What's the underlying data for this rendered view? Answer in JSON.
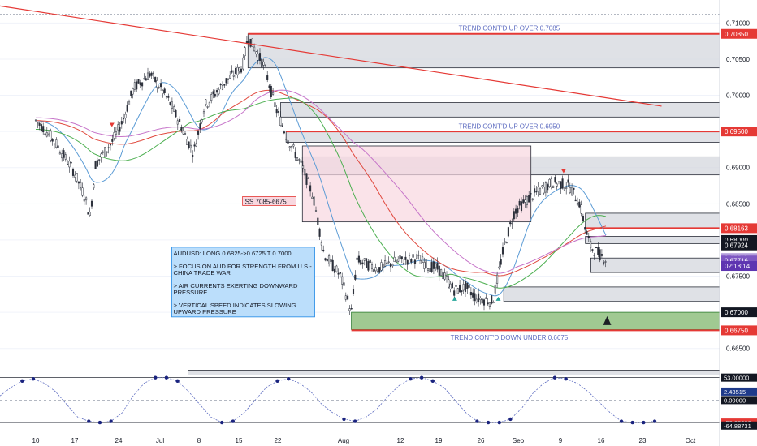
{
  "chart_data": [
    {
      "type": "line",
      "symbol": "AUDUSD",
      "x_dates": [
        "2019-06-10",
        "2019-07-22",
        "2019-08-01",
        "2019-09-01",
        "2019-09-23"
      ],
      "x_tick_labels": [
        "10",
        "17",
        "24",
        "Jul",
        "8",
        "15",
        "22",
        "Aug",
        "12",
        "19",
        "26",
        "Sep",
        "9",
        "16",
        "23",
        "Oct"
      ],
      "price_axis_labels": [
        "0.71000",
        "0.70500",
        "0.70000",
        "0.69500",
        "0.69000",
        "0.68500",
        "0.68000",
        "0.67500",
        "0.67000",
        "0.66500"
      ],
      "ylim": [
        0.6625,
        0.7115
      ],
      "price_path": [
        {
          "d": "2019-06-10",
          "p": 0.6965
        },
        {
          "d": "2019-06-12",
          "p": 0.695
        },
        {
          "d": "2019-06-14",
          "p": 0.693
        },
        {
          "d": "2019-06-17",
          "p": 0.6895
        },
        {
          "d": "2019-06-19",
          "p": 0.686
        },
        {
          "d": "2019-06-20",
          "p": 0.6832
        },
        {
          "d": "2019-06-21",
          "p": 0.6905
        },
        {
          "d": "2019-06-24",
          "p": 0.6935
        },
        {
          "d": "2019-06-26",
          "p": 0.6965
        },
        {
          "d": "2019-06-28",
          "p": 0.701
        },
        {
          "d": "2019-07-01",
          "p": 0.703
        },
        {
          "d": "2019-07-03",
          "p": 0.701
        },
        {
          "d": "2019-07-05",
          "p": 0.6985
        },
        {
          "d": "2019-07-09",
          "p": 0.692
        },
        {
          "d": "2019-07-11",
          "p": 0.6985
        },
        {
          "d": "2019-07-15",
          "p": 0.702
        },
        {
          "d": "2019-07-18",
          "p": 0.704
        },
        {
          "d": "2019-07-19",
          "p": 0.7082
        },
        {
          "d": "2019-07-22",
          "p": 0.704
        },
        {
          "d": "2019-07-24",
          "p": 0.6985
        },
        {
          "d": "2019-07-26",
          "p": 0.6945
        },
        {
          "d": "2019-07-29",
          "p": 0.69
        },
        {
          "d": "2019-07-31",
          "p": 0.686
        },
        {
          "d": "2019-08-02",
          "p": 0.678
        },
        {
          "d": "2019-08-05",
          "p": 0.675
        },
        {
          "d": "2019-08-07",
          "p": 0.67
        },
        {
          "d": "2019-08-08",
          "p": 0.6772
        },
        {
          "d": "2019-08-12",
          "p": 0.676
        },
        {
          "d": "2019-08-15",
          "p": 0.677
        },
        {
          "d": "2019-08-19",
          "p": 0.6775
        },
        {
          "d": "2019-08-21",
          "p": 0.6765
        },
        {
          "d": "2019-08-23",
          "p": 0.676
        },
        {
          "d": "2019-08-26",
          "p": 0.673
        },
        {
          "d": "2019-08-28",
          "p": 0.6735
        },
        {
          "d": "2019-08-30",
          "p": 0.672
        },
        {
          "d": "2019-09-02",
          "p": 0.6715
        },
        {
          "d": "2019-09-04",
          "p": 0.679
        },
        {
          "d": "2019-09-06",
          "p": 0.684
        },
        {
          "d": "2019-09-09",
          "p": 0.686
        },
        {
          "d": "2019-09-11",
          "p": 0.687
        },
        {
          "d": "2019-09-13",
          "p": 0.688
        },
        {
          "d": "2019-09-16",
          "p": 0.6875
        },
        {
          "d": "2019-09-18",
          "p": 0.685
        },
        {
          "d": "2019-09-19",
          "p": 0.6815
        },
        {
          "d": "2019-09-20",
          "p": 0.679
        },
        {
          "d": "2019-09-23",
          "p": 0.6772
        }
      ],
      "levels": [
        {
          "price": 0.7085,
          "label": "0.70850",
          "color": "#e53935"
        },
        {
          "price": 0.695,
          "label": "0.69500",
          "color": "#e53935"
        },
        {
          "price": 0.68163,
          "label": "0.68163",
          "color": "#e53935"
        },
        {
          "price": 0.68,
          "label": "0.68000",
          "color": "#131722"
        },
        {
          "price": 0.67924,
          "label": "0.67924",
          "color": "#131722"
        },
        {
          "price": 0.6775,
          "label": "0.675°6",
          "color": "#b39ddb"
        },
        {
          "price": 0.67716,
          "label": "0.67716",
          "color": "#7e57c2"
        },
        {
          "price": 0.6764,
          "label": "02:18:14",
          "color": "#5e35b1"
        },
        {
          "price": 0.67,
          "label": "0.67000",
          "color": "#131722"
        },
        {
          "price": 0.6675,
          "label": "0.66750",
          "color": "#e53935"
        }
      ],
      "zones": [
        {
          "from": "2019-07-19",
          "to_edge": true,
          "top": 0.7085,
          "bottom": 0.7038
        },
        {
          "from": "2019-07-25",
          "to_edge": true,
          "top": 0.699,
          "bottom": 0.697
        },
        {
          "from": "2019-07-26",
          "to_edge": true,
          "top": 0.695,
          "bottom": 0.6935
        },
        {
          "from": "2019-07-29",
          "to_edge": true,
          "top": 0.6915,
          "bottom": 0.689
        },
        {
          "from": "2019-09-19",
          "to_edge": true,
          "top": 0.6837,
          "bottom": 0.6816
        },
        {
          "from": "2019-09-19",
          "to_edge": true,
          "top": 0.6805,
          "bottom": 0.6795
        },
        {
          "from": "2019-09-20",
          "to_edge": true,
          "top": 0.6775,
          "bottom": 0.6755
        },
        {
          "from": "2019-09-04",
          "to_edge": true,
          "top": 0.6735,
          "bottom": 0.6715
        },
        {
          "from": "2019-07-08",
          "to_edge": true,
          "top": 0.662,
          "bottom": 0.66
        }
      ],
      "pink_zone": {
        "from": "2019-07-29",
        "to": "2019-09-09",
        "top": 0.693,
        "bottom": 0.6825
      },
      "green_zone": {
        "from": "2019-08-07",
        "to_edge": true,
        "top": 0.67,
        "bottom": 0.6676
      },
      "trendline": {
        "from": {
          "d": "2019-05-27",
          "p": 0.7132
        },
        "to": {
          "d": "2019-10-03",
          "p": 0.6985
        }
      },
      "annotations": {
        "trend_up_7085": "TREND CONT'D UP OVER 0.7085",
        "trend_up_6950": "TREND CONT'D UP OVER 0.6950",
        "trend_down_6675": "TREND CONT'D DOWN UNDER 0.6675",
        "ss_label": "SS 7085-6675",
        "notes": [
          "AUDUSD: LONG 0.6825->0.6725 T 0.7000",
          "> FOCUS ON AUD FOR STRENGTH FROM U.S.-",
          "CHINA TRADE WAR",
          "> AIR CURRENTS EXERTING DOWNWARD",
          "PRESSURE",
          "> VERTICAL SPEED INDICATES SLOWING",
          "UPWARD PRESSURE"
        ]
      },
      "colors": {
        "up": "#26a69a",
        "down": "#3a3f4b",
        "ma_fast": "#5b9bd5",
        "ma_mid": "#e0483d",
        "ma_slow": "#4caf50",
        "ma_purple": "#c674c9"
      }
    },
    {
      "type": "line",
      "name": "oscillator",
      "axis_labels": [
        {
          "label": "53.00000",
          "color": "#131722"
        },
        {
          "label": "2.43515",
          "color": "#1e3a8a"
        },
        {
          "label": "0.00000",
          "color": "#131722"
        },
        {
          "label": "-53.00000",
          "color": "#e53935"
        },
        {
          "label": "-64.88731",
          "color": "#131722"
        }
      ],
      "ylim": [
        -70,
        60
      ],
      "series_values": [
        10,
        30,
        45,
        50,
        40,
        20,
        -10,
        -40,
        -50,
        -53,
        -50,
        -30,
        10,
        40,
        53,
        53,
        45,
        20,
        -10,
        -40,
        -53,
        -50,
        -30,
        0,
        30,
        45,
        50,
        40,
        20,
        -10,
        -30,
        -45,
        -50,
        -40,
        -20,
        10,
        35,
        50,
        53,
        45,
        30,
        0,
        -30,
        -50,
        -53,
        -53,
        -45,
        -20,
        15,
        40,
        53,
        50,
        40,
        20,
        -5,
        -30,
        -50,
        -53,
        -53,
        -50
      ],
      "zero_line": 0
    }
  ]
}
